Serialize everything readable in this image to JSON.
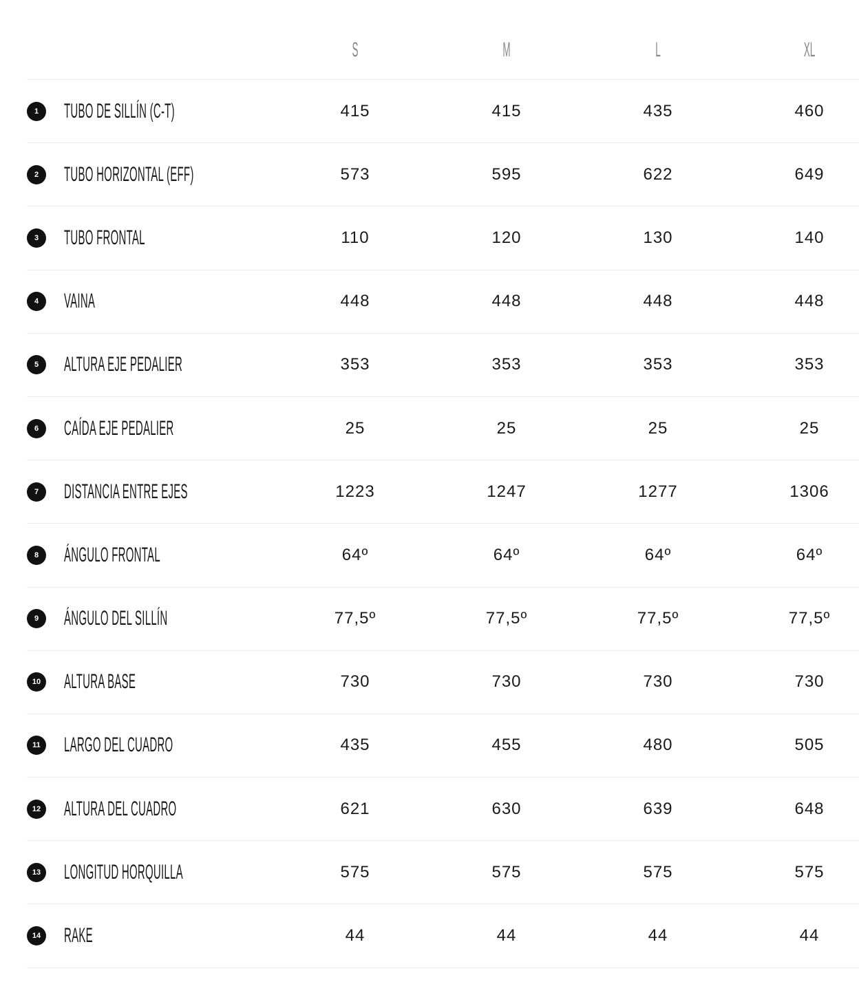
{
  "sizes": [
    "S",
    "M",
    "L",
    "XL"
  ],
  "rows": [
    {
      "num": "1",
      "label": "TUBO DE SILLÍN (C-T)",
      "values": [
        "415",
        "415",
        "435",
        "460"
      ]
    },
    {
      "num": "2",
      "label": "TUBO HORIZONTAL (EFF)",
      "values": [
        "573",
        "595",
        "622",
        "649"
      ]
    },
    {
      "num": "3",
      "label": "TUBO FRONTAL",
      "values": [
        "110",
        "120",
        "130",
        "140"
      ]
    },
    {
      "num": "4",
      "label": "VAINA",
      "values": [
        "448",
        "448",
        "448",
        "448"
      ]
    },
    {
      "num": "5",
      "label": "ALTURA EJE PEDALIER",
      "values": [
        "353",
        "353",
        "353",
        "353"
      ]
    },
    {
      "num": "6",
      "label": "CAÍDA EJE PEDALIER",
      "values": [
        "25",
        "25",
        "25",
        "25"
      ]
    },
    {
      "num": "7",
      "label": "DISTANCIA ENTRE EJES",
      "values": [
        "1223",
        "1247",
        "1277",
        "1306"
      ]
    },
    {
      "num": "8",
      "label": "ÁNGULO FRONTAL",
      "values": [
        "64º",
        "64º",
        "64º",
        "64º"
      ]
    },
    {
      "num": "9",
      "label": "ÁNGULO DEL SILLÍN",
      "values": [
        "77,5º",
        "77,5º",
        "77,5º",
        "77,5º"
      ]
    },
    {
      "num": "10",
      "label": "ALTURA BASE",
      "values": [
        "730",
        "730",
        "730",
        "730"
      ]
    },
    {
      "num": "11",
      "label": "LARGO DEL CUADRO",
      "values": [
        "435",
        "455",
        "480",
        "505"
      ]
    },
    {
      "num": "12",
      "label": "ALTURA DEL CUADRO",
      "values": [
        "621",
        "630",
        "639",
        "648"
      ]
    },
    {
      "num": "13",
      "label": "LONGITUD HORQUILLA",
      "values": [
        "575",
        "575",
        "575",
        "575"
      ]
    },
    {
      "num": "14",
      "label": "RAKE",
      "values": [
        "44",
        "44",
        "44",
        "44"
      ]
    }
  ]
}
